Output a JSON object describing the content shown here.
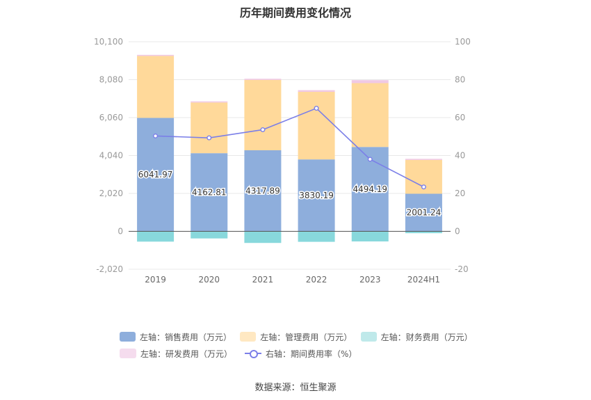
{
  "title": "历年期间费用变化情况",
  "source": "数据来源：恒生聚源",
  "colors": {
    "sales": "#8eaedc",
    "mgmt": "#ffd99a",
    "finance": "#88d8dc",
    "rnd": "#f0c9e4",
    "rate": "#7b7fe8",
    "grid": "#e8e8e8",
    "axis_text": "#999999"
  },
  "chart_data": {
    "type": "bar",
    "stacked": true,
    "categories": [
      "2019",
      "2020",
      "2021",
      "2022",
      "2023",
      "2024H1"
    ],
    "left_axis": {
      "ylim": [
        -2020,
        10100
      ],
      "ticks": [
        -2020,
        0,
        2020,
        4040,
        6060,
        8080,
        10100
      ],
      "tick_labels": [
        "-2,020",
        "0",
        "2,020",
        "4,040",
        "6,060",
        "8,080",
        "10,100"
      ]
    },
    "right_axis": {
      "ylim": [
        -20,
        100
      ],
      "ticks": [
        -20,
        0,
        20,
        40,
        60,
        80,
        100
      ],
      "tick_labels": [
        "-20",
        "0",
        "20",
        "40",
        "60",
        "80",
        "100"
      ]
    },
    "series": [
      {
        "key": "sales",
        "name": "左轴：销售费用（万元）",
        "axis": "left",
        "values": [
          6041.97,
          4162.81,
          4317.89,
          3830.19,
          4494.19,
          2001.24
        ],
        "data_labels": [
          "6041.97",
          "4162.81",
          "4317.89",
          "3830.19",
          "4494.19",
          "2001.24"
        ]
      },
      {
        "key": "mgmt",
        "name": "左轴：管理费用（万元）",
        "axis": "left",
        "values": [
          3300,
          2700,
          3750,
          3600,
          3400,
          1800
        ]
      },
      {
        "key": "finance",
        "name": "左轴：财务费用（万元）",
        "axis": "left",
        "values": [
          -550,
          -380,
          -620,
          -560,
          -540,
          -100
        ]
      },
      {
        "key": "rnd",
        "name": "左轴：研发费用（万元）",
        "axis": "left",
        "values": [
          60,
          60,
          60,
          90,
          160,
          60
        ]
      },
      {
        "key": "rate",
        "name": "右轴：期间费用率（%）",
        "axis": "right",
        "type": "line",
        "values": [
          50.3,
          49.3,
          53.6,
          64.9,
          38.0,
          23.4
        ]
      }
    ],
    "legend_position": "bottom",
    "grid": true
  }
}
